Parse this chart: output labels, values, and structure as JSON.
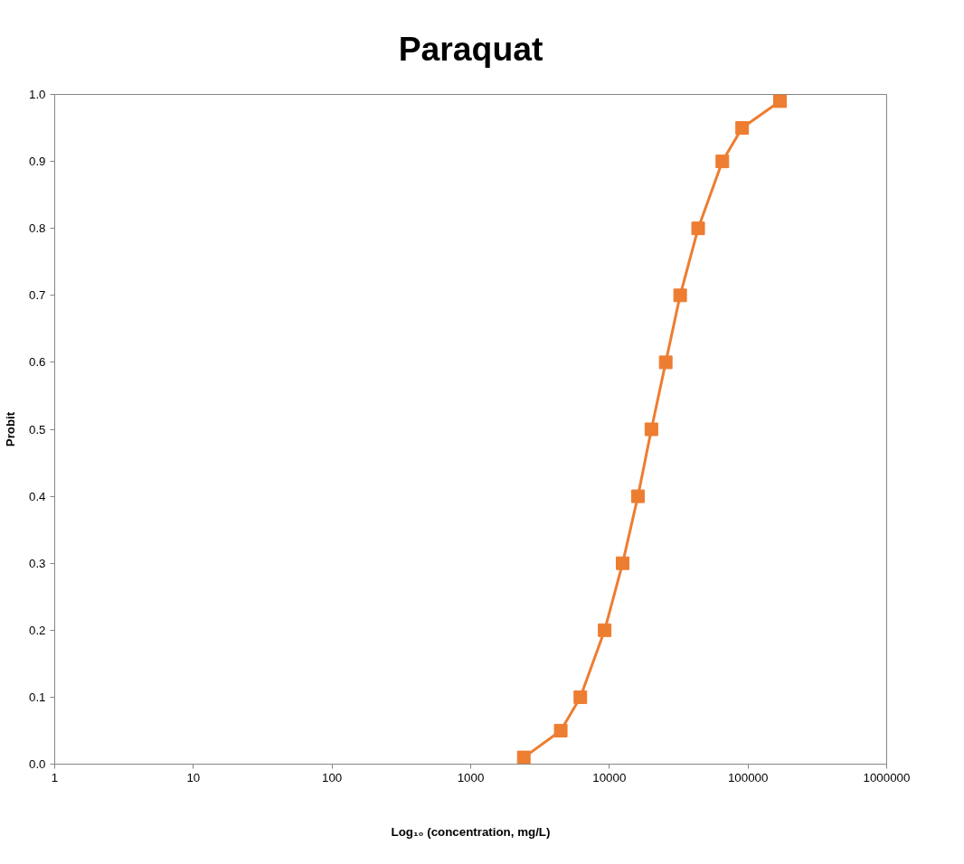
{
  "chart_data": {
    "type": "line",
    "title": "Paraquat",
    "xlabel": "Log₁₀ (concentration, mg/L)",
    "ylabel": "Probit",
    "x": [
      2415,
      4460,
      6180,
      9250,
      12470,
      16070,
      20100,
      25500,
      32400,
      43700,
      65300,
      90700,
      170000
    ],
    "series": [
      {
        "color": "#ed7d31",
        "values": [
          0.01,
          0.05,
          0.1,
          0.2,
          0.3,
          0.4,
          0.5,
          0.6,
          0.7,
          0.8,
          0.9,
          0.95,
          0.99
        ]
      }
    ],
    "log": "x",
    "xlim": [
      1,
      1000000
    ],
    "xticks": [
      1,
      10,
      100,
      1000,
      10000,
      100000,
      1000000
    ],
    "ylim": [
      0,
      1
    ],
    "yticks": [
      {
        "value": 0,
        "label": "0.0"
      },
      {
        "value": 0.1,
        "label": "0.1"
      },
      {
        "value": 0.2,
        "label": "0.2"
      },
      {
        "value": 0.3,
        "label": "0.3"
      },
      {
        "value": 0.4,
        "label": "0.4"
      },
      {
        "value": 0.5,
        "label": "0.5"
      },
      {
        "value": 0.6,
        "label": "0.6"
      },
      {
        "value": 0.7,
        "label": "0.7"
      },
      {
        "value": 0.8,
        "label": "0.8"
      },
      {
        "value": 0.9,
        "label": "0.9"
      },
      {
        "value": 1,
        "label": "1.0"
      }
    ],
    "marker": "square",
    "line_style": "solid",
    "grid": false
  }
}
